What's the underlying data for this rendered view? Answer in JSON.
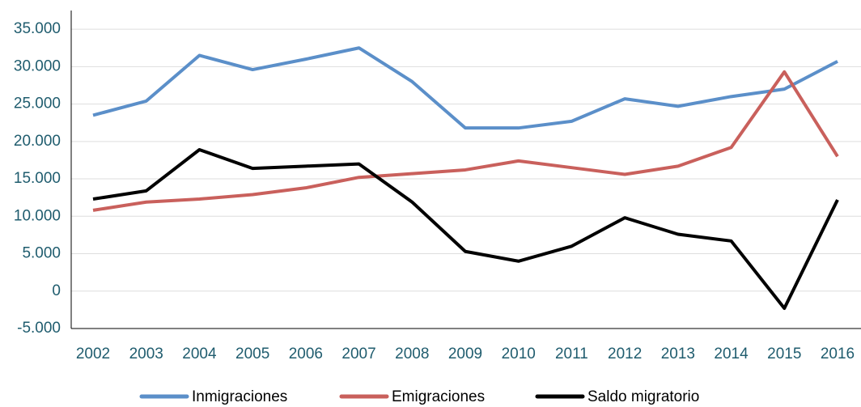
{
  "chart_data": {
    "type": "line",
    "categories": [
      "2002",
      "2003",
      "2004",
      "2005",
      "2006",
      "2007",
      "2008",
      "2009",
      "2010",
      "2011",
      "2012",
      "2013",
      "2014",
      "2015",
      "2016"
    ],
    "series": [
      {
        "name": "Inmigraciones",
        "color": "#5b8fc9",
        "values": [
          23500,
          25400,
          31500,
          29600,
          31000,
          32500,
          28000,
          21800,
          21800,
          22700,
          25700,
          24700,
          26000,
          27000,
          30700
        ]
      },
      {
        "name": "Emigraciones",
        "color": "#c9605c",
        "values": [
          10800,
          11900,
          12300,
          12900,
          13800,
          15200,
          15700,
          16200,
          17400,
          16500,
          15600,
          16700,
          19200,
          29300,
          18000
        ]
      },
      {
        "name": "Saldo migratorio",
        "color": "#000000",
        "values": [
          12300,
          13400,
          18900,
          16400,
          16700,
          17000,
          11900,
          5300,
          4000,
          6000,
          9800,
          7600,
          6700,
          -2300,
          12200
        ]
      }
    ],
    "ylim": [
      -5000,
      37500
    ],
    "yticks": [
      {
        "value": -5000,
        "label": "-5.000"
      },
      0,
      {
        "value": 5000,
        "label": "5.000"
      },
      {
        "value": 10000,
        "label": "10.000"
      },
      {
        "value": 15000,
        "label": "15.000"
      },
      {
        "value": 20000,
        "label": "20.000"
      },
      {
        "value": 25000,
        "label": "25.000"
      },
      {
        "value": 30000,
        "label": "30.000"
      },
      {
        "value": 35000,
        "label": "35.000"
      }
    ],
    "grid": true,
    "legend": "bottom"
  }
}
